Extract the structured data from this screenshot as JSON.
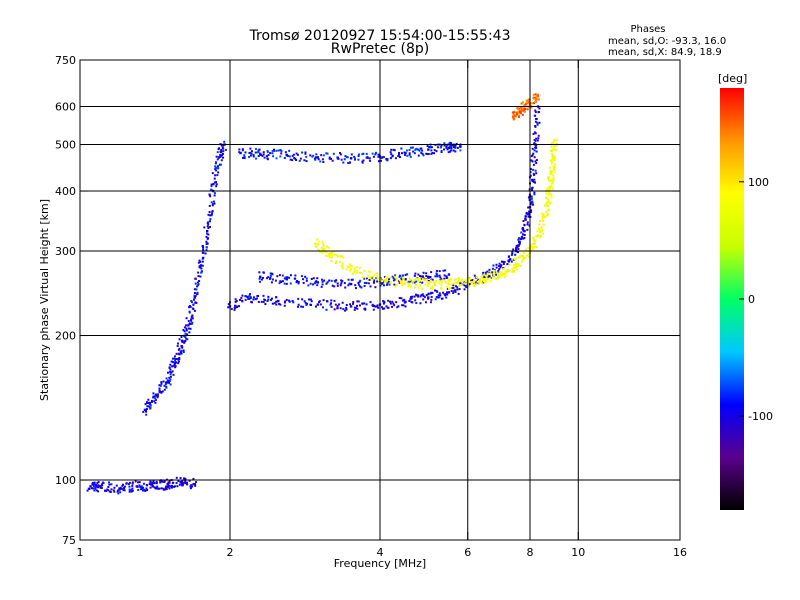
{
  "chart_data": {
    "type": "scatter",
    "title": "Tromsø 20120927 15:54:00-15:55:43",
    "subtitle": "RwPretec (8p)",
    "xlabel": "Frequency [MHz]",
    "ylabel": "Stationary phase Virtual Height [km]",
    "xscale": "log",
    "yscale": "log",
    "xlim": [
      1,
      16
    ],
    "ylim": [
      75,
      750
    ],
    "x_ticks": [
      1,
      2,
      4,
      6,
      8,
      10,
      16
    ],
    "x_tick_labels": [
      "1",
      "2",
      "4",
      "6",
      "8",
      "10",
      "16"
    ],
    "y_ticks": [
      75,
      100,
      200,
      300,
      400,
      500,
      600,
      750
    ],
    "y_tick_labels": [
      "75",
      "100",
      "200",
      "300",
      "400",
      "500",
      "600",
      "750"
    ],
    "x_gridlines": [
      2,
      4,
      6,
      8,
      10
    ],
    "y_gridlines": [
      100,
      200,
      300,
      400,
      500,
      600
    ],
    "grid": true,
    "phase_stats": {
      "heading": "Phases",
      "line_o": "mean, sd,O: -93.3, 16.0",
      "line_x": "mean, sd,X: 84.9, 18.9"
    },
    "colorbar": {
      "label": "[deg]",
      "min": -180,
      "max": 180,
      "ticks": [
        100,
        0,
        -100
      ],
      "tick_labels": [
        "100",
        "0",
        "-100"
      ],
      "colors": [
        "#000000",
        "#5a008c",
        "#0000ff",
        "#00c8ff",
        "#00ff64",
        "#c8ff00",
        "#ffff00",
        "#ff9600",
        "#ff0000"
      ]
    },
    "traces": [
      {
        "phase": -100,
        "points": [
          [
            1.05,
            97
          ],
          [
            1.1,
            97
          ],
          [
            1.2,
            96
          ],
          [
            1.3,
            97
          ],
          [
            1.4,
            97
          ],
          [
            1.5,
            98
          ],
          [
            1.6,
            99
          ],
          [
            1.7,
            98
          ]
        ]
      },
      {
        "phase": -95,
        "points": [
          [
            1.35,
            140
          ],
          [
            1.42,
            150
          ],
          [
            1.5,
            160
          ],
          [
            1.55,
            175
          ],
          [
            1.6,
            190
          ],
          [
            1.65,
            210
          ],
          [
            1.7,
            240
          ],
          [
            1.75,
            280
          ],
          [
            1.8,
            330
          ],
          [
            1.85,
            400
          ],
          [
            1.9,
            470
          ],
          [
            1.95,
            500
          ]
        ]
      },
      {
        "phase": -100,
        "points": [
          [
            2.0,
            230
          ],
          [
            2.2,
            240
          ],
          [
            2.5,
            236
          ],
          [
            3.0,
            232
          ],
          [
            3.5,
            230
          ],
          [
            4.0,
            232
          ],
          [
            4.5,
            235
          ],
          [
            5.0,
            240
          ],
          [
            5.5,
            246
          ],
          [
            6.0,
            255
          ],
          [
            6.5,
            265
          ],
          [
            7.0,
            280
          ],
          [
            7.5,
            300
          ],
          [
            7.8,
            330
          ],
          [
            8.0,
            370
          ],
          [
            8.1,
            420
          ],
          [
            8.2,
            500
          ],
          [
            8.3,
            600
          ]
        ]
      },
      {
        "phase": -95,
        "points": [
          [
            2.3,
            265
          ],
          [
            2.6,
            262
          ],
          [
            3.0,
            258
          ],
          [
            3.5,
            256
          ],
          [
            4.0,
            258
          ],
          [
            4.5,
            262
          ],
          [
            5.0,
            265
          ],
          [
            5.5,
            268
          ]
        ]
      },
      {
        "phase": -90,
        "points": [
          [
            2.1,
            480
          ],
          [
            2.3,
            478
          ],
          [
            2.6,
            475
          ],
          [
            3.0,
            470
          ],
          [
            3.5,
            468
          ],
          [
            4.0,
            472
          ],
          [
            4.5,
            480
          ],
          [
            5.0,
            488
          ],
          [
            5.5,
            492
          ],
          [
            5.8,
            495
          ]
        ]
      },
      {
        "phase": 80,
        "points": [
          [
            3.0,
            310
          ],
          [
            3.2,
            295
          ],
          [
            3.5,
            275
          ],
          [
            4.0,
            262
          ],
          [
            4.5,
            258
          ],
          [
            5.0,
            256
          ],
          [
            5.5,
            256
          ],
          [
            6.0,
            258
          ],
          [
            6.5,
            262
          ],
          [
            7.0,
            268
          ],
          [
            7.5,
            280
          ],
          [
            8.0,
            300
          ],
          [
            8.4,
            330
          ],
          [
            8.7,
            380
          ],
          [
            8.8,
            420
          ],
          [
            8.9,
            470
          ],
          [
            8.95,
            510
          ]
        ]
      },
      {
        "phase": 150,
        "points": [
          [
            7.4,
            570
          ],
          [
            7.7,
            590
          ],
          [
            8.0,
            610
          ],
          [
            8.3,
            630
          ]
        ]
      }
    ]
  }
}
